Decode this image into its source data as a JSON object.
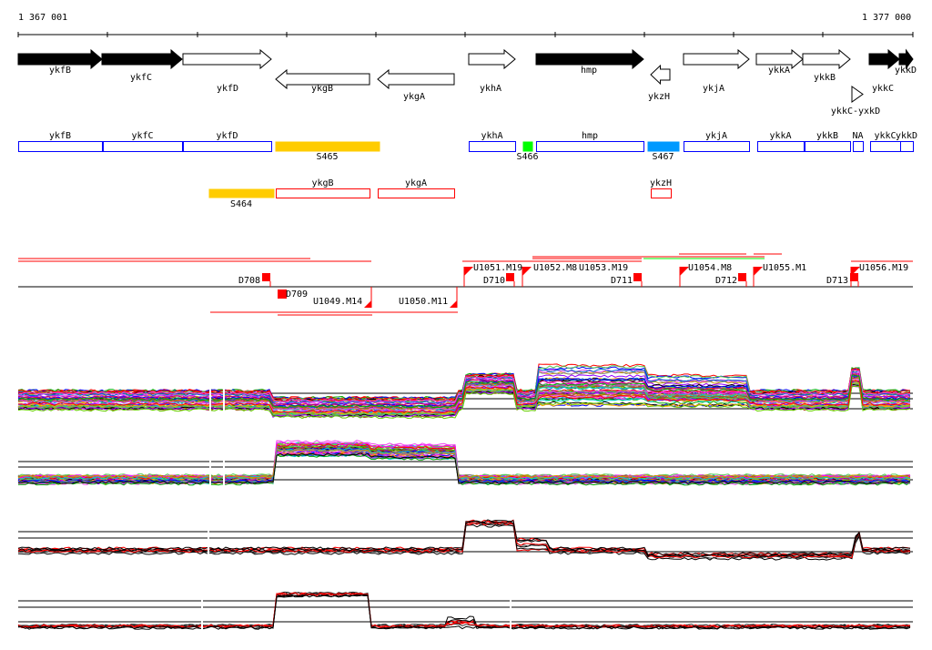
{
  "ruler": {
    "start_label": "1 367 001",
    "end_label": "1 377 000",
    "start": 1367001,
    "end": 1377000
  },
  "genes": [
    {
      "name": "ykfB",
      "strand": "+",
      "filled": true
    },
    {
      "name": "ykfC",
      "strand": "+",
      "filled": true
    },
    {
      "name": "ykfD",
      "strand": "+",
      "filled": false
    },
    {
      "name": "ykgB",
      "strand": "-",
      "filled": false
    },
    {
      "name": "ykgA",
      "strand": "-",
      "filled": false
    },
    {
      "name": "ykhA",
      "strand": "+",
      "filled": false
    },
    {
      "name": "hmp",
      "strand": "+",
      "filled": true
    },
    {
      "name": "ykzH",
      "strand": "-",
      "filled": false
    },
    {
      "name": "ykjA",
      "strand": "+",
      "filled": false
    },
    {
      "name": "ykkA",
      "strand": "+",
      "filled": false
    },
    {
      "name": "ykkB",
      "strand": "+",
      "filled": false
    },
    {
      "name": "ykkC",
      "strand": "+",
      "filled": true
    },
    {
      "name": "ykkD",
      "strand": "+",
      "filled": true
    },
    {
      "name": "ykkC-yxkD",
      "strand": "+",
      "filled": false
    }
  ],
  "segments_row1": [
    {
      "name": "ykfB",
      "type": "gene"
    },
    {
      "name": "ykfC",
      "type": "gene"
    },
    {
      "name": "ykfD",
      "type": "gene"
    },
    {
      "name": "S465",
      "type": "yellow"
    },
    {
      "name": "ykhA",
      "type": "gene"
    },
    {
      "name": "S466",
      "type": "green"
    },
    {
      "name": "hmp",
      "type": "gene"
    },
    {
      "name": "S467",
      "type": "blue"
    },
    {
      "name": "ykjA",
      "type": "gene"
    },
    {
      "name": "ykkA",
      "type": "gene"
    },
    {
      "name": "ykkB",
      "type": "gene"
    },
    {
      "name": "NA",
      "type": "gene"
    },
    {
      "name": "ykkC",
      "type": "gene"
    },
    {
      "name": "ykkD",
      "type": "gene"
    }
  ],
  "segments_row2": [
    {
      "name": "S464",
      "type": "yellow"
    },
    {
      "name": "ykgB",
      "type": "gene"
    },
    {
      "name": "ykgA",
      "type": "gene"
    },
    {
      "name": "ykzH",
      "type": "gene"
    }
  ],
  "sites": [
    "D708",
    "D709",
    "U1049.M14",
    "U1050.M11",
    "U1051.M19",
    "D710",
    "U1052.M8",
    "U1053.M19",
    "D711",
    "U1054.M8",
    "D712",
    "U1055.M1",
    "D713",
    "U1056.M19"
  ],
  "colors": {
    "gene_box": "#0000ff",
    "minus_box": "#ff0000",
    "yellow": "#ffcc00",
    "green": "#00ff00",
    "blue": "#0099ff",
    "site": "#ff0000"
  }
}
